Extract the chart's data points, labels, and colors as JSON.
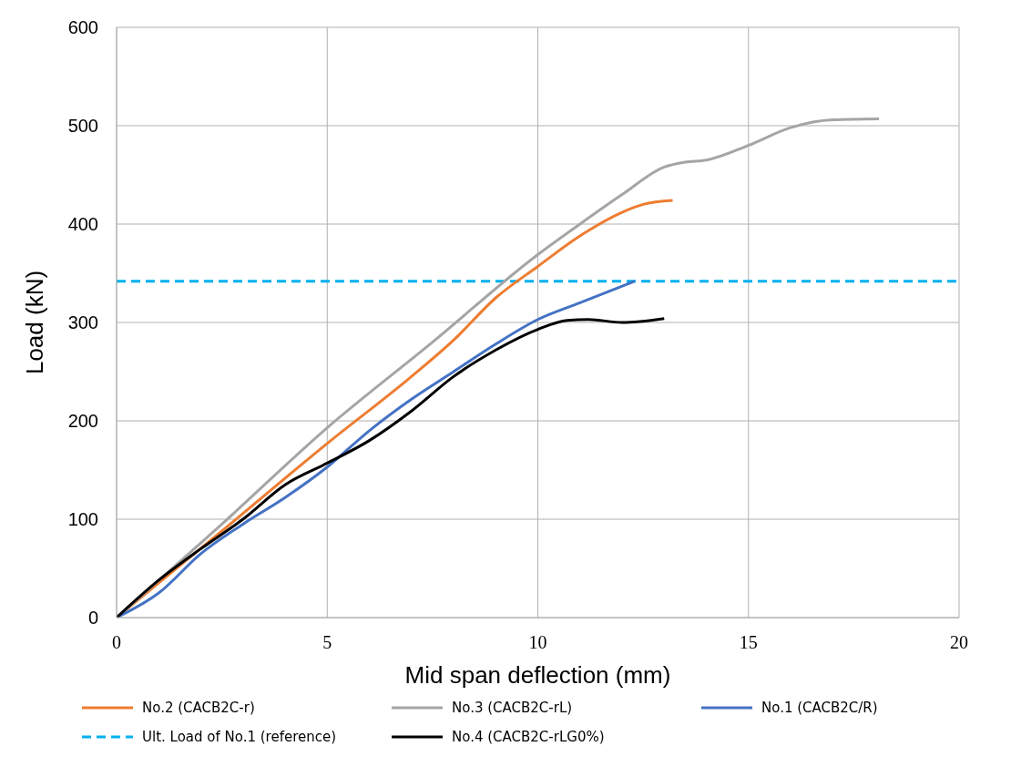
{
  "chart_data": {
    "type": "line",
    "xlabel": "Mid span deflection (mm)",
    "ylabel": "Load (kN)",
    "xlim": [
      0,
      20
    ],
    "xticks": [
      0,
      5,
      10,
      15,
      20
    ],
    "ylim": [
      0,
      600
    ],
    "yticks": [
      0,
      100,
      200,
      300,
      400,
      500,
      600
    ],
    "grid": true,
    "legend": "bottom",
    "line_style": "solid",
    "marker": "none",
    "series": [
      {
        "name": "No.2 (CACB2C-r)",
        "color": "#ed7d31",
        "x": [
          0,
          2.5,
          5,
          7,
          8,
          9,
          10,
          11,
          12,
          12.5,
          13.2
        ],
        "values": [
          0,
          88,
          177,
          245,
          282,
          325,
          357,
          388,
          412,
          420,
          424
        ]
      },
      {
        "name": "No.3 (CACB2C-rL)",
        "color": "#a5a5a5",
        "x": [
          0,
          2.5,
          5,
          7.5,
          10,
          11,
          12,
          13,
          13.5,
          14,
          15,
          16,
          17,
          18.1
        ],
        "values": [
          0,
          95,
          193,
          280,
          369,
          400,
          430,
          458,
          463,
          465,
          480,
          498,
          506,
          507
        ]
      },
      {
        "name": "No.1 (CACB2C/R)",
        "color": "#4472c4",
        "x": [
          0,
          1,
          2,
          3,
          4,
          5,
          6,
          7,
          8,
          9,
          10,
          11,
          12.3
        ],
        "values": [
          0,
          25,
          65,
          95,
          122,
          153,
          190,
          222,
          250,
          278,
          303,
          320,
          342
        ]
      },
      {
        "name": "No.4 (CACB2C-rLG0%)",
        "color": "#000000",
        "x": [
          0,
          1,
          2,
          3,
          4,
          5,
          6,
          7,
          8,
          9,
          10,
          10.7,
          11.2,
          12,
          13
        ],
        "values": [
          0,
          38,
          70,
          100,
          135,
          157,
          180,
          210,
          245,
          272,
          293,
          302,
          303,
          300,
          304
        ]
      }
    ],
    "ref_lines": [
      {
        "axis": "y",
        "value": 342,
        "label": "Ult. Load of No.1 (reference)",
        "color": "#00b0f0",
        "line_style": "dashed"
      }
    ]
  }
}
